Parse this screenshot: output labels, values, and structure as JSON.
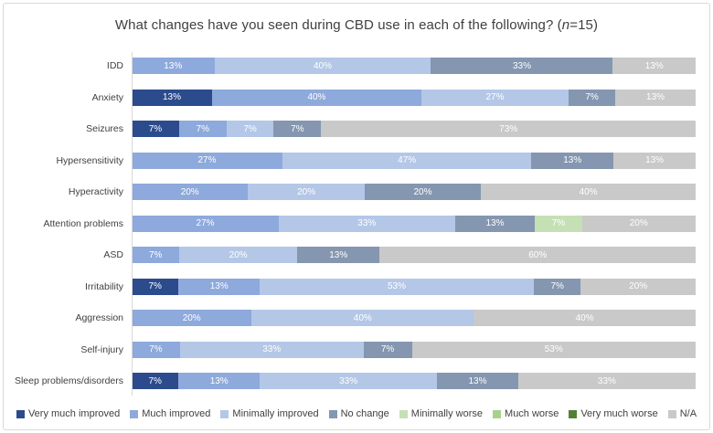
{
  "frame": {
    "border_color": "#d9d9d9",
    "background": "#ffffff"
  },
  "title": {
    "prefix": "What changes have you seen during CBD use in each of the following? (",
    "n": "n",
    "suffix": "=15)"
  },
  "chart_data": {
    "type": "bar",
    "orientation": "horizontal",
    "stacked": true,
    "unit": "%",
    "title": "What changes have you seen during CBD use in each of the following? (n=15)",
    "xlabel": "",
    "ylabel": "",
    "xlim": [
      0,
      100
    ],
    "grid": false,
    "legend_position": "bottom",
    "data_labels": "white percent labels centered inside each segment",
    "categories": [
      "IDD",
      "Anxiety",
      "Seizures",
      "Hypersensitivity",
      "Hyperactivity",
      "Attention problems",
      "ASD",
      "Irritability",
      "Aggression",
      "Self-injury",
      "Sleep problems/disorders"
    ],
    "series": [
      {
        "name": "Very much improved",
        "color": "#2b4b8d",
        "values": [
          0,
          13,
          7,
          0,
          0,
          0,
          0,
          7,
          0,
          0,
          7
        ]
      },
      {
        "name": "Much improved",
        "color": "#8ea9db",
        "values": [
          13,
          40,
          7,
          27,
          20,
          27,
          7,
          13,
          20,
          7,
          13
        ]
      },
      {
        "name": "Minimally improved",
        "color": "#b4c7e7",
        "values": [
          40,
          27,
          7,
          47,
          20,
          33,
          20,
          53,
          40,
          33,
          33
        ]
      },
      {
        "name": "No change",
        "color": "#8496b0",
        "values": [
          33,
          7,
          7,
          13,
          20,
          13,
          13,
          7,
          0,
          7,
          13
        ]
      },
      {
        "name": "Minimally worse",
        "color": "#c5e0b4",
        "values": [
          0,
          0,
          0,
          0,
          0,
          7,
          0,
          0,
          0,
          0,
          0
        ]
      },
      {
        "name": "Much worse",
        "color": "#a9d18e",
        "values": [
          0,
          0,
          0,
          0,
          0,
          0,
          0,
          0,
          0,
          0,
          0
        ]
      },
      {
        "name": "Very much worse",
        "color": "#548235",
        "values": [
          0,
          0,
          0,
          0,
          0,
          0,
          0,
          0,
          0,
          0,
          0
        ]
      },
      {
        "name": "N/A",
        "color": "#c9c9c9",
        "values": [
          13,
          13,
          73,
          13,
          40,
          20,
          60,
          20,
          40,
          53,
          33
        ]
      }
    ]
  }
}
